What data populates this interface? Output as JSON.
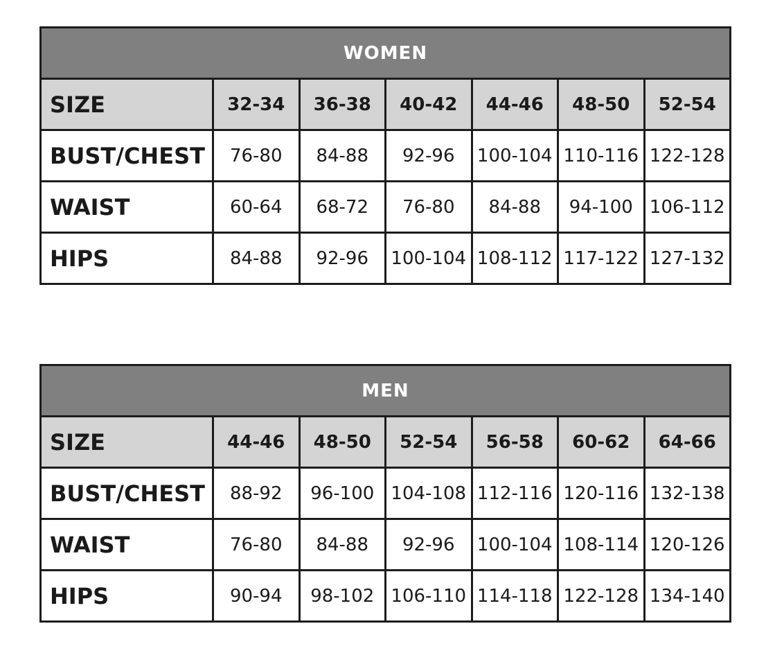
{
  "tables": [
    {
      "title": "WOMEN",
      "header": {
        "label": "SIZE",
        "values": [
          "32-34",
          "36-38",
          "40-42",
          "44-46",
          "48-50",
          "52-54"
        ]
      },
      "rows": [
        {
          "label": "BUST/CHEST",
          "values": [
            "76-80",
            "84-88",
            "92-96",
            "100-104",
            "110-116",
            "122-128"
          ]
        },
        {
          "label": "WAIST",
          "values": [
            "60-64",
            "68-72",
            "76-80",
            "84-88",
            "94-100",
            "106-112"
          ]
        },
        {
          "label": "HIPS",
          "values": [
            "84-88",
            "92-96",
            "100-104",
            "108-112",
            "117-122",
            "127-132"
          ]
        }
      ]
    },
    {
      "title": "MEN",
      "header": {
        "label": "SIZE",
        "values": [
          "44-46",
          "48-50",
          "52-54",
          "56-58",
          "60-62",
          "64-66"
        ]
      },
      "rows": [
        {
          "label": "BUST/CHEST",
          "values": [
            "88-92",
            "96-100",
            "104-108",
            "112-116",
            "120-116",
            "132-138"
          ]
        },
        {
          "label": "WAIST",
          "values": [
            "76-80",
            "84-88",
            "92-96",
            "100-104",
            "108-114",
            "120-126"
          ]
        },
        {
          "label": "HIPS",
          "values": [
            "90-94",
            "98-102",
            "106-110",
            "114-118",
            "122-128",
            "134-140"
          ]
        }
      ]
    }
  ],
  "colors": {
    "title_bg": "#808080",
    "size_row_bg": "#d4d4d4",
    "border": "#1c1c1c"
  }
}
